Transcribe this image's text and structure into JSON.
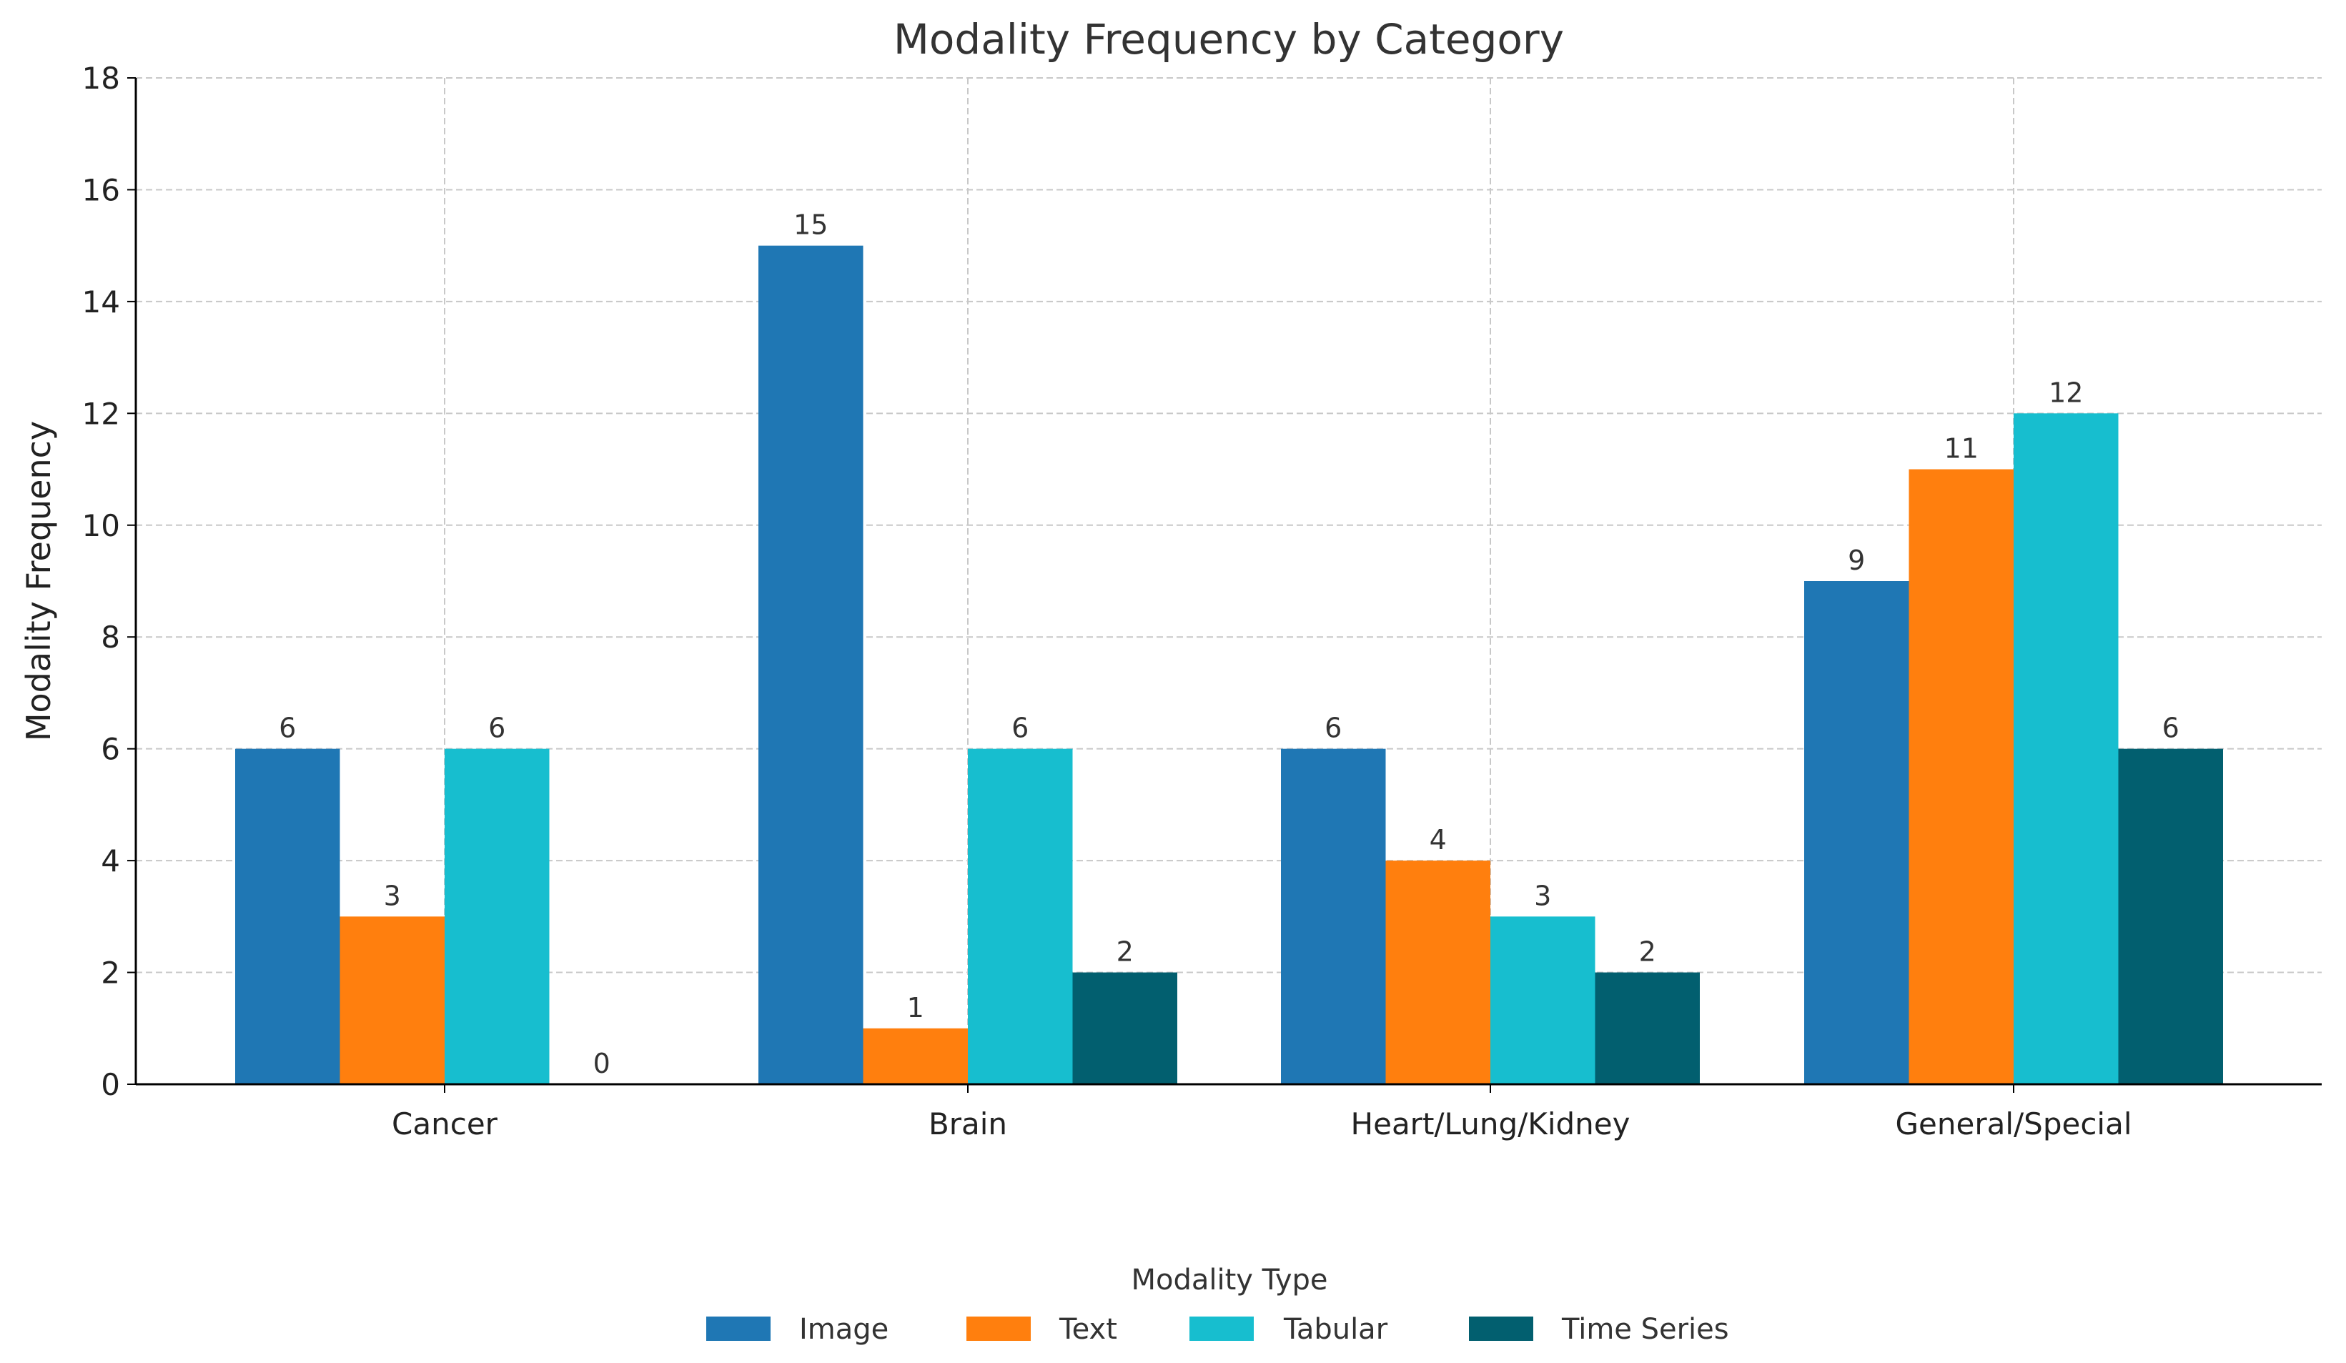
{
  "chart_data": {
    "type": "bar",
    "title": "Modality Frequency by Category",
    "xlabel": "",
    "ylabel": "Modality Frequency",
    "ylim": [
      0,
      18
    ],
    "yticks": [
      0,
      2,
      4,
      6,
      8,
      10,
      12,
      14,
      16,
      18
    ],
    "grid": true,
    "categories": [
      "Cancer",
      "Brain",
      "Heart/Lung/Kidney",
      "General/Special"
    ],
    "series": [
      {
        "name": "Image",
        "color": "#1f77b4",
        "values": [
          6,
          15,
          6,
          9
        ]
      },
      {
        "name": "Text",
        "color": "#ff7f0e",
        "values": [
          3,
          1,
          4,
          11
        ]
      },
      {
        "name": "Tabular",
        "color": "#17becf",
        "values": [
          6,
          6,
          3,
          12
        ]
      },
      {
        "name": "Time Series",
        "color": "#025f6f",
        "values": [
          0,
          2,
          2,
          6
        ]
      }
    ],
    "legend": {
      "title": "Modality Type",
      "placement": "bottom-center"
    }
  }
}
